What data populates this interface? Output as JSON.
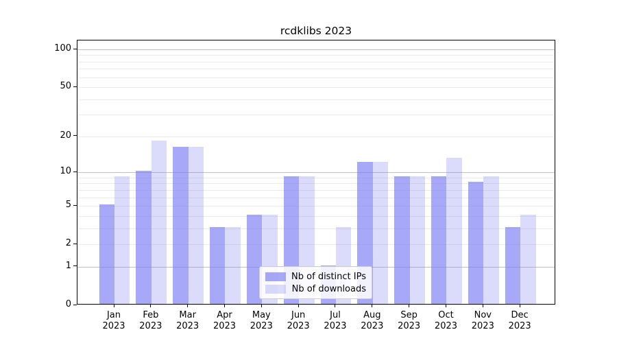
{
  "title": "rcdklibs 2023",
  "chart_data": {
    "type": "bar",
    "title": "rcdklibs 2023",
    "categories": [
      "Jan 2023",
      "Feb 2023",
      "Mar 2023",
      "Apr 2023",
      "May 2023",
      "Jun 2023",
      "Jul 2023",
      "Aug 2023",
      "Sep 2023",
      "Oct 2023",
      "Nov 2023",
      "Dec 2023"
    ],
    "series": [
      {
        "name": "Nb of distinct IPs",
        "color": "rgba(123,123,244,0.66)",
        "values": [
          5,
          10,
          16,
          3,
          4,
          9,
          1,
          12,
          9,
          9,
          8,
          3
        ]
      },
      {
        "name": "Nb of downloads",
        "color": "rgba(123,123,244,0.27)",
        "values": [
          9,
          18,
          16,
          3,
          4,
          9,
          3,
          12,
          9,
          13,
          9,
          4
        ]
      }
    ],
    "yscale": "log1p",
    "ylim": [
      0,
      118
    ],
    "y_ticks": [
      0,
      1,
      2,
      5,
      10,
      20,
      50,
      100
    ],
    "y_major_gridlines": [
      1,
      10,
      100
    ],
    "y_minor_gridlines": [
      2,
      3,
      4,
      5,
      6,
      7,
      8,
      9,
      20,
      30,
      40,
      50,
      60,
      70,
      80,
      90
    ],
    "grid": true,
    "legend_position": "lower center"
  },
  "colors": {
    "bar_distinct_ips": "rgba(123,123,244,0.66)",
    "bar_downloads": "rgba(123,123,244,0.27)",
    "grid_major": "#c0c0c0",
    "grid_minor": "#ebebeb",
    "axis": "#000000",
    "legend_border": "#cccccc",
    "legend_background": "rgba(255,255,255,0.85)"
  }
}
